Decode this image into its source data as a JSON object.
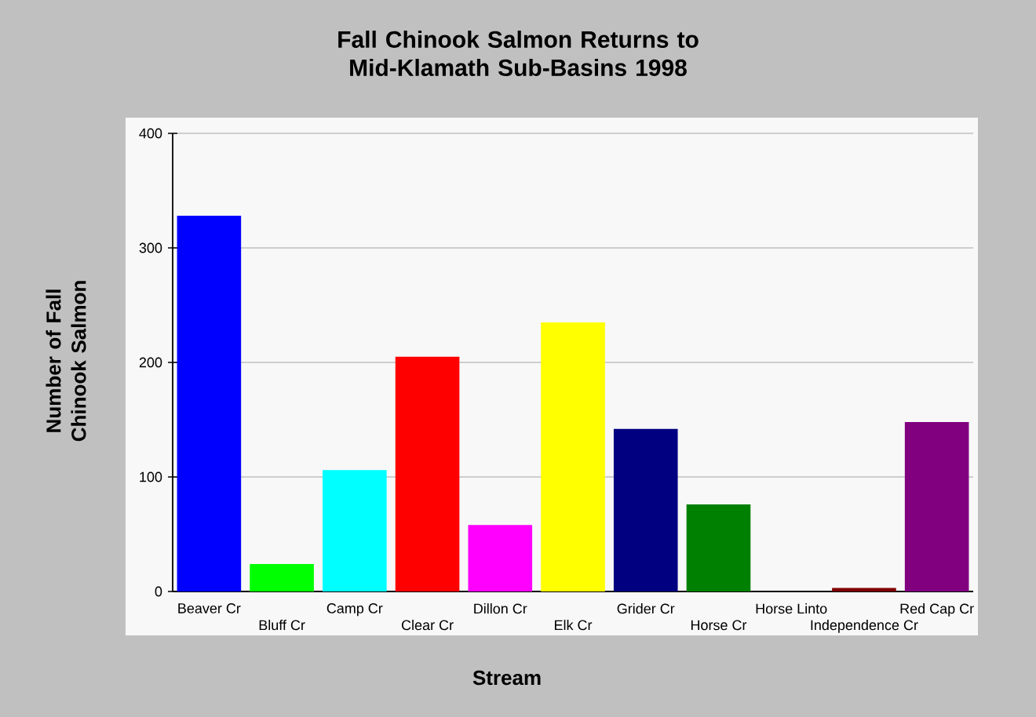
{
  "chart_data": {
    "type": "bar",
    "title": "Fall Chinook Salmon Returns to Mid-Klamath Sub-Basins 1998",
    "xlabel": "Stream",
    "ylabel": "Number of Fall Chinook Salmon",
    "categories": [
      "Beaver Cr",
      "Bluff Cr",
      "Camp Cr",
      "Clear Cr",
      "Dillon Cr",
      "Elk Cr",
      "Grider Cr",
      "Horse Cr",
      "Horse Linto",
      "Independence Cr",
      "Red Cap Cr"
    ],
    "values": [
      328,
      24,
      106,
      205,
      58,
      235,
      142,
      76,
      0,
      3,
      148
    ],
    "colors": [
      "#0000ff",
      "#00ff00",
      "#00ffff",
      "#ff0000",
      "#ff00ff",
      "#ffff00",
      "#000080",
      "#008000",
      "#808000",
      "#800000",
      "#800080"
    ],
    "ylim": [
      0,
      400
    ],
    "yticks": [
      0,
      100,
      200,
      300,
      400
    ],
    "grid": "y"
  }
}
